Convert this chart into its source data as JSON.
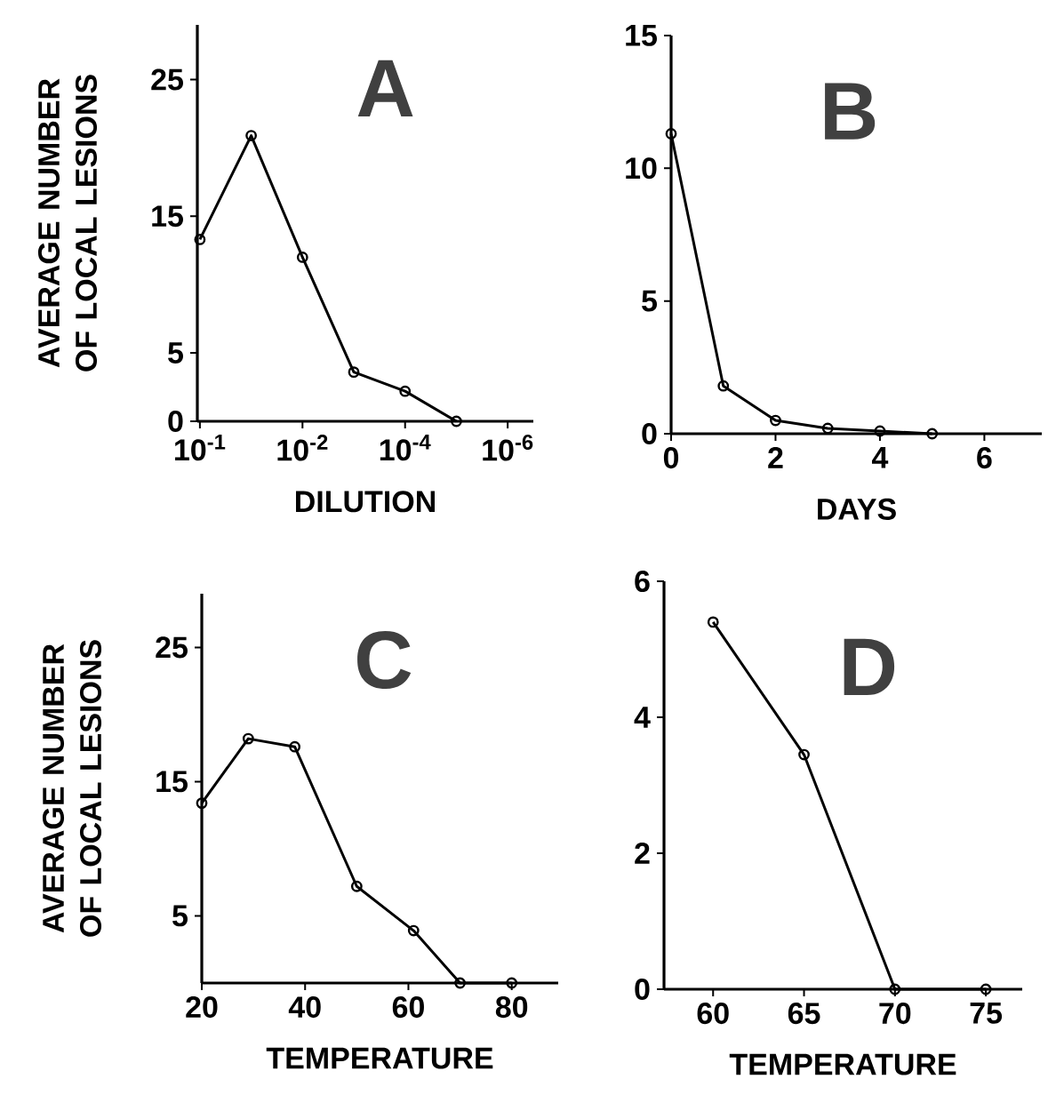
{
  "chart_data": [
    {
      "type": "line",
      "xlabel": "DILUTION",
      "ylabel": "AVERAGE NUMBER OF LOCAL LESIONS",
      "annotations": [
        "A"
      ],
      "categories": [
        "10$^{-1}$",
        null,
        "10$^{-2}$",
        null,
        "10$^{-4}$",
        null,
        "10$^{-6}$"
      ],
      "values": [
        13.3,
        20.9,
        12.0,
        3.6,
        2.2,
        0,
        null
      ],
      "color": "#000000",
      "marker": "circle",
      "line_style": "solid",
      "ylim": [
        0,
        29
      ],
      "yticks": [
        0,
        5,
        15,
        25
      ]
    },
    {
      "type": "line",
      "xlabel": "DAYS",
      "annotations": [
        "B"
      ],
      "x": [
        0,
        1,
        2,
        3,
        4,
        5
      ],
      "values": [
        11.3,
        1.8,
        0.5,
        0.2,
        0.1,
        0
      ],
      "color": "#000000",
      "marker": "circle",
      "line_style": "solid",
      "xlim": [
        0,
        7.1
      ],
      "xticks": [
        0,
        2,
        4,
        6
      ],
      "ylim": [
        0,
        15
      ],
      "yticks": [
        0,
        5,
        10,
        15
      ]
    },
    {
      "type": "line",
      "xlabel": "TEMPERATURE",
      "ylabel": "AVERAGE NUMBER OF LOCAL LESIONS",
      "annotations": [
        "C"
      ],
      "x": [
        20,
        29,
        38,
        50,
        61,
        70,
        80
      ],
      "values": [
        13.4,
        18.2,
        17.6,
        7.2,
        3.9,
        0,
        0
      ],
      "color": "#000000",
      "marker": "circle",
      "line_style": "solid",
      "xlim": [
        20,
        89
      ],
      "xticks": [
        20,
        40,
        60,
        80
      ],
      "ylim": [
        0,
        29
      ],
      "yticks": [
        5,
        15,
        25
      ]
    },
    {
      "type": "line",
      "xlabel": "TEMPERATURE",
      "annotations": [
        "D"
      ],
      "x": [
        60,
        65,
        70,
        75
      ],
      "values": [
        5.4,
        3.45,
        0,
        0
      ],
      "color": "#000000",
      "marker": "circle",
      "line_style": "solid",
      "xlim": [
        57.3,
        77
      ],
      "xticks": [
        60,
        65,
        70,
        75
      ],
      "ylim": [
        0,
        6
      ],
      "yticks": [
        0,
        2,
        4,
        6
      ]
    }
  ]
}
